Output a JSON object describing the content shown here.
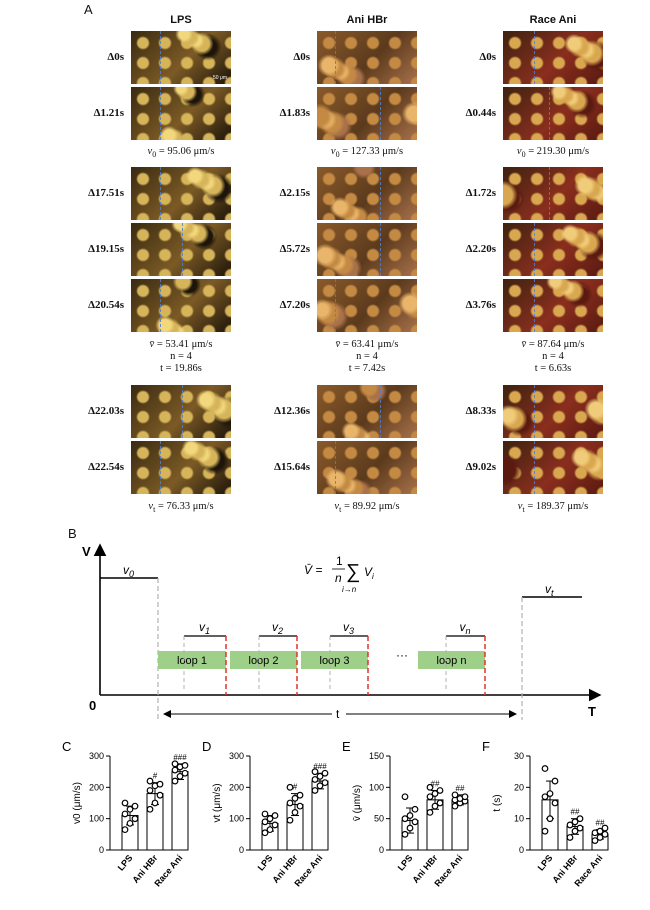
{
  "panelA": {
    "letter": "A",
    "columns": [
      {
        "title": "LPS",
        "scale_text": "50 μm",
        "g1": {
          "labels": [
            "Δ0s",
            "Δ1.21s"
          ],
          "caption_sym": "v",
          "caption_sub": "0",
          "caption_val": " = 95.06  μm/s"
        },
        "g2": {
          "labels": [
            "Δ17.51s",
            "Δ19.15s",
            "Δ20.54s"
          ],
          "caption_sym": "v̄",
          "caption_val": " = 53.41  μm/s",
          "n": "n = 4",
          "t": "t = 19.86s"
        },
        "g3": {
          "labels": [
            "Δ22.03s",
            "Δ22.54s"
          ],
          "caption_sym": "v",
          "caption_sub": "t",
          "caption_val": " = 76.33  μm/s"
        }
      },
      {
        "title": "Ani HBr",
        "g1": {
          "labels": [
            "Δ0s",
            "Δ1.83s"
          ],
          "caption_sym": "v",
          "caption_sub": "0",
          "caption_val": " = 127.33  μm/s"
        },
        "g2": {
          "labels": [
            "Δ2.15s",
            "Δ5.72s",
            "Δ7.20s"
          ],
          "caption_sym": "v̄",
          "caption_val": " = 63.41  μm/s",
          "n": "n = 4",
          "t": "t = 7.42s"
        },
        "g3": {
          "labels": [
            "Δ12.36s",
            "Δ15.64s"
          ],
          "caption_sym": "v",
          "caption_sub": "t",
          "caption_val": " = 89.92  μm/s"
        }
      },
      {
        "title": "Race Ani",
        "g1": {
          "labels": [
            "Δ0s",
            "Δ0.44s"
          ],
          "caption_sym": "v",
          "caption_sub": "0",
          "caption_val": " = 219.30  μm/s"
        },
        "g2": {
          "labels": [
            "Δ1.72s",
            "Δ2.20s",
            "Δ3.76s"
          ],
          "caption_sym": "v̄",
          "caption_val": " = 87.64  μm/s",
          "n": "n = 4",
          "t": "t = 6.63s"
        },
        "g3": {
          "labels": [
            "Δ8.33s",
            "Δ9.02s"
          ],
          "caption_sym": "v",
          "caption_sub": "t",
          "caption_val": " = 189.37  μm/s"
        }
      }
    ]
  },
  "panelB": {
    "letter": "B",
    "y_axis": "V",
    "x_axis": "T",
    "origin": "0",
    "v0": "v",
    "v0_sub": "0",
    "vt_sub": "t",
    "t_label": "t",
    "ellipsis": "···",
    "formula_lhs": "V̄ = ",
    "formula_num": "1",
    "formula_den": "n",
    "formula_sum": "∑",
    "formula_sum_sub": "i→n",
    "formula_term": "V",
    "formula_term_sub": "i",
    "loops": [
      {
        "label": "loop 1",
        "v_sub": "1"
      },
      {
        "label": "loop 2",
        "v_sub": "2"
      },
      {
        "label": "loop 3",
        "v_sub": "3"
      },
      {
        "label": "loop n",
        "v_sub": "n"
      }
    ],
    "colors": {
      "loop_fill": "#9fd08a",
      "red_dash": "#e0332b",
      "gray_dash": "#b0b0b0"
    }
  },
  "chart_data": [
    {
      "type": "bar",
      "panel": "C",
      "ylabel": "v0 (μm/s)",
      "categories": [
        "LPS",
        "Ani HBr",
        "Race Ani"
      ],
      "values": [
        110,
        180,
        250
      ],
      "errors": [
        30,
        35,
        25
      ],
      "points": [
        [
          65,
          85,
          100,
          115,
          130,
          140,
          150
        ],
        [
          130,
          150,
          175,
          190,
          205,
          210,
          220
        ],
        [
          220,
          235,
          245,
          255,
          265,
          270,
          275
        ]
      ],
      "ylim": [
        0,
        300
      ],
      "yticks": [
        0,
        100,
        200,
        300
      ],
      "annotations": [
        "",
        "#",
        "###"
      ]
    },
    {
      "type": "bar",
      "panel": "D",
      "ylabel": "vt (μm/s)",
      "categories": [
        "LPS",
        "Ani HBr",
        "Race Ani"
      ],
      "values": [
        85,
        145,
        220
      ],
      "errors": [
        25,
        35,
        25
      ],
      "points": [
        [
          55,
          65,
          80,
          90,
          100,
          110,
          115
        ],
        [
          95,
          120,
          140,
          150,
          165,
          175,
          200
        ],
        [
          190,
          205,
          215,
          225,
          235,
          245,
          250
        ]
      ],
      "ylim": [
        0,
        300
      ],
      "yticks": [
        0,
        100,
        200,
        300
      ],
      "annotations": [
        "",
        "#",
        "###"
      ]
    },
    {
      "type": "bar",
      "panel": "E",
      "ylabel": "v̄ (μm/s)",
      "categories": [
        "LPS",
        "Ani HBr",
        "Race Ani"
      ],
      "values": [
        47,
        80,
        80
      ],
      "errors": [
        20,
        15,
        8
      ],
      "points": [
        [
          25,
          35,
          45,
          50,
          55,
          65,
          85
        ],
        [
          60,
          70,
          75,
          85,
          90,
          95,
          100
        ],
        [
          70,
          75,
          78,
          80,
          82,
          85,
          88
        ]
      ],
      "ylim": [
        0,
        150
      ],
      "yticks": [
        0,
        50,
        100,
        150
      ],
      "annotations": [
        "",
        "##",
        "##"
      ]
    },
    {
      "type": "bar",
      "panel": "F",
      "ylabel": "t (s)",
      "categories": [
        "LPS",
        "Ani HBr",
        "Race Ani"
      ],
      "values": [
        16,
        7.5,
        5
      ],
      "errors": [
        6,
        2.5,
        1.5
      ],
      "points": [
        [
          6,
          10,
          15,
          17,
          18,
          22,
          26
        ],
        [
          4,
          6,
          7,
          8,
          9,
          10
        ],
        [
          3,
          4,
          5,
          5.5,
          6,
          7
        ]
      ],
      "ylim": [
        0,
        30
      ],
      "yticks": [
        0,
        10,
        20,
        30
      ],
      "annotations": [
        "",
        "##",
        "##"
      ]
    }
  ]
}
